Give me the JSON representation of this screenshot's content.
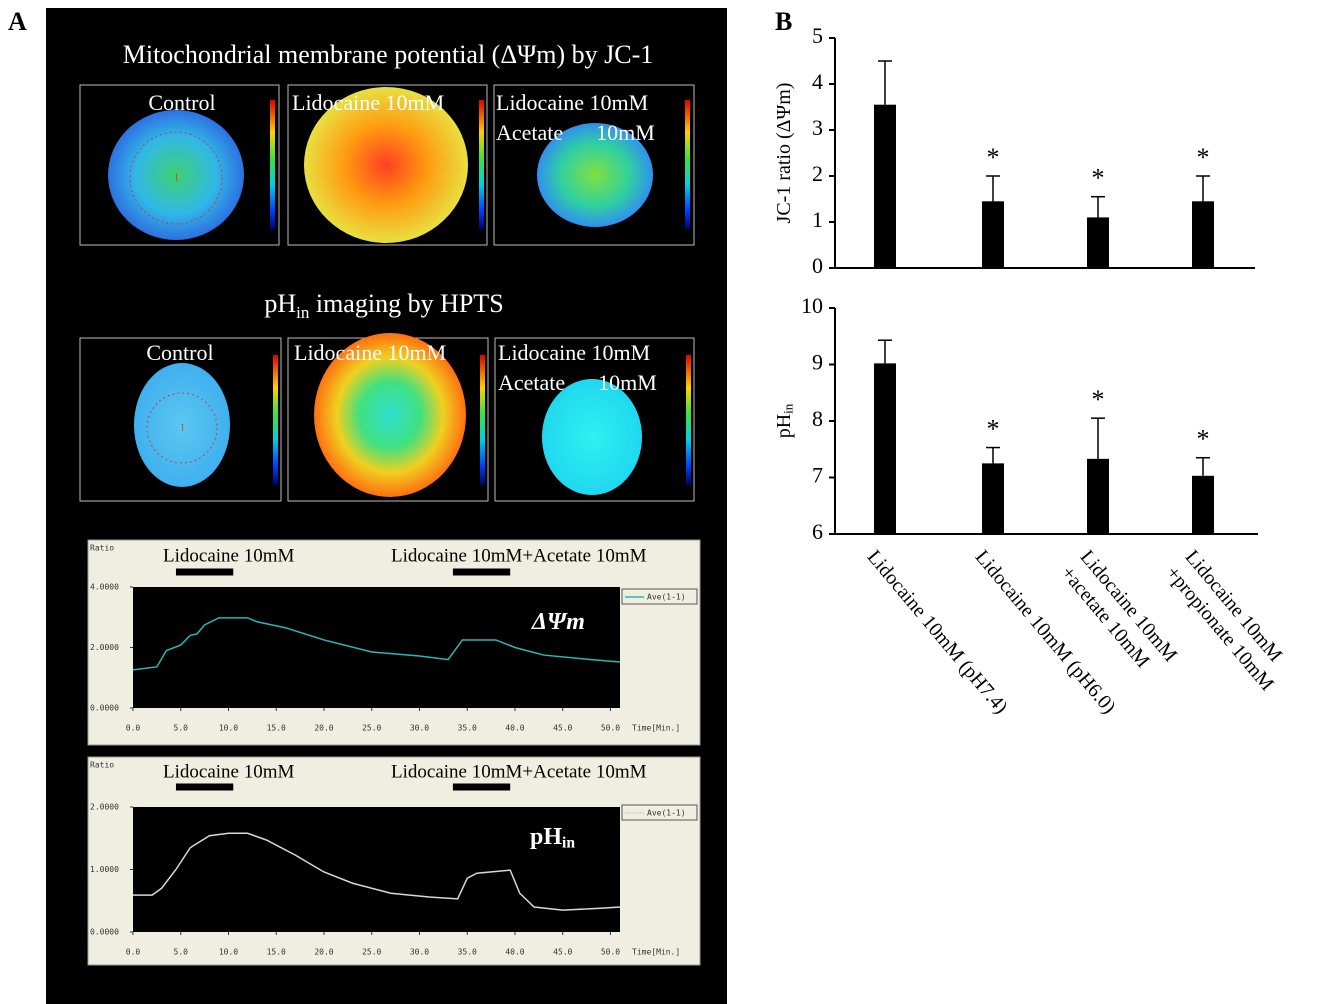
{
  "panel_a": {
    "label": "A",
    "jc1": {
      "title": "Mitochondrial membrane potential (ΔΨm) by JC-1",
      "images": [
        {
          "label": [
            "Control"
          ],
          "roi_label": "1"
        },
        {
          "label": [
            "Lidocaine 10mM"
          ]
        },
        {
          "label": [
            "Lidocaine 10mM",
            "Acetate      10mM"
          ]
        }
      ]
    },
    "hpts": {
      "title": [
        "pH",
        "in",
        " imaging by HPTS"
      ],
      "images": [
        {
          "label": [
            "Control"
          ],
          "roi_label": "1"
        },
        {
          "label": [
            "Lidocaine 10mM"
          ]
        },
        {
          "label": [
            "Lidocaine 10mM",
            "Acetate      10mM"
          ]
        }
      ]
    }
  },
  "panel_b": {
    "label": "B"
  },
  "chart_data": [
    {
      "type": "line",
      "y_label": "Ratio",
      "x_label": "Time[Min.]",
      "annotation": [
        "ΔΨm"
      ],
      "events": [
        {
          "label": "Lidocaine 10mM",
          "start": 4.5,
          "end": 10.5
        },
        {
          "label": "Lidocaine 10mM+Acetate 10mM",
          "start": 33.5,
          "end": 39.5
        }
      ],
      "x": [
        0,
        2.5,
        3.5,
        5,
        6,
        6.7,
        7.5,
        9,
        12,
        13,
        16,
        20,
        25,
        30,
        33,
        34.5,
        38,
        40,
        43,
        48,
        51
      ],
      "series": [
        {
          "name": "Ave(1-1)",
          "color": "#2ab7b7",
          "values": [
            1.26,
            1.36,
            1.9,
            2.08,
            2.4,
            2.45,
            2.75,
            2.98,
            2.98,
            2.85,
            2.65,
            2.25,
            1.85,
            1.72,
            1.6,
            2.25,
            2.25,
            2.0,
            1.75,
            1.6,
            1.52
          ]
        }
      ],
      "xlim": [
        0,
        51
      ],
      "ylim": [
        0,
        4
      ],
      "xticks": [
        {
          "value": 0,
          "label": "0.0"
        },
        {
          "value": 5,
          "label": "5.0"
        },
        {
          "value": 10,
          "label": "10.0"
        },
        {
          "value": 15,
          "label": "15.0"
        },
        {
          "value": 20,
          "label": "20.0"
        },
        {
          "value": 25,
          "label": "25.0"
        },
        {
          "value": 30,
          "label": "30.0"
        },
        {
          "value": 35,
          "label": "35.0"
        },
        {
          "value": 40,
          "label": "40.0"
        },
        {
          "value": 45,
          "label": "45.0"
        },
        {
          "value": 50,
          "label": "50.0"
        }
      ],
      "yticks": [
        {
          "value": 0,
          "label": "0.0000"
        },
        {
          "value": 2,
          "label": "2.0000"
        },
        {
          "value": 4,
          "label": "4.0000"
        }
      ]
    },
    {
      "type": "line",
      "y_label": "Ratio",
      "x_label": "Time[Min.]",
      "annotation": [
        "pH",
        "in"
      ],
      "events": [
        {
          "label": "Lidocaine 10mM",
          "start": 4.5,
          "end": 10.5
        },
        {
          "label": "Lidocaine 10mM+Acetate 10mM",
          "start": 33.5,
          "end": 39.5
        }
      ],
      "x": [
        0,
        2,
        3,
        4.5,
        6,
        8,
        10,
        12,
        14,
        17,
        20,
        23,
        27,
        31,
        34,
        35,
        36,
        39.5,
        40.5,
        42,
        45,
        49,
        51
      ],
      "series": [
        {
          "name": "Ave(1-1)",
          "color": "#d9d9d9",
          "values": [
            0.59,
            0.59,
            0.7,
            1.0,
            1.35,
            1.54,
            1.58,
            1.58,
            1.47,
            1.23,
            0.96,
            0.78,
            0.62,
            0.56,
            0.53,
            0.86,
            0.94,
            0.99,
            0.62,
            0.4,
            0.35,
            0.38,
            0.4
          ]
        }
      ],
      "xlim": [
        0,
        51
      ],
      "ylim": [
        0,
        2
      ],
      "xticks": [
        {
          "value": 0,
          "label": "0.0"
        },
        {
          "value": 5,
          "label": "5.0"
        },
        {
          "value": 10,
          "label": "10.0"
        },
        {
          "value": 15,
          "label": "15.0"
        },
        {
          "value": 20,
          "label": "20.0"
        },
        {
          "value": 25,
          "label": "25.0"
        },
        {
          "value": 30,
          "label": "30.0"
        },
        {
          "value": 35,
          "label": "35.0"
        },
        {
          "value": 40,
          "label": "40.0"
        },
        {
          "value": 45,
          "label": "45.0"
        },
        {
          "value": 50,
          "label": "50.0"
        }
      ],
      "yticks": [
        {
          "value": 0,
          "label": "0.0000"
        },
        {
          "value": 1,
          "label": "1.0000"
        },
        {
          "value": 2,
          "label": "2.0000"
        }
      ]
    },
    {
      "type": "bar",
      "y_label": [
        "JC-1 ratio (ΔΨm)"
      ],
      "categories": [
        null,
        null,
        null,
        null
      ],
      "values": [
        3.55,
        1.45,
        1.1,
        1.45
      ],
      "errors": [
        0.95,
        0.55,
        0.45,
        0.55
      ],
      "significance": [
        null,
        "*",
        "*",
        "*"
      ],
      "color": "#000000",
      "ylim": [
        0,
        5
      ],
      "yticks": [
        0,
        1,
        2,
        3,
        4,
        5
      ]
    },
    {
      "type": "bar",
      "y_label": [
        "pH",
        "in"
      ],
      "categories": [
        [
          "Lidocaine 10mM (pH7.4)"
        ],
        [
          "Lidocaine 10mM (pH6.0)"
        ],
        [
          "Lidocaine 10mM",
          "+acetate 10mM"
        ],
        [
          "Lidocaine 10mM",
          "+propionate 10mM"
        ]
      ],
      "values": [
        9.02,
        7.25,
        7.33,
        7.03
      ],
      "errors": [
        0.41,
        0.28,
        0.72,
        0.32
      ],
      "significance": [
        null,
        "*",
        "*",
        "*"
      ],
      "color": "#000000",
      "ylim": [
        6,
        10
      ],
      "yticks": [
        6,
        7,
        8,
        9,
        10
      ]
    }
  ]
}
